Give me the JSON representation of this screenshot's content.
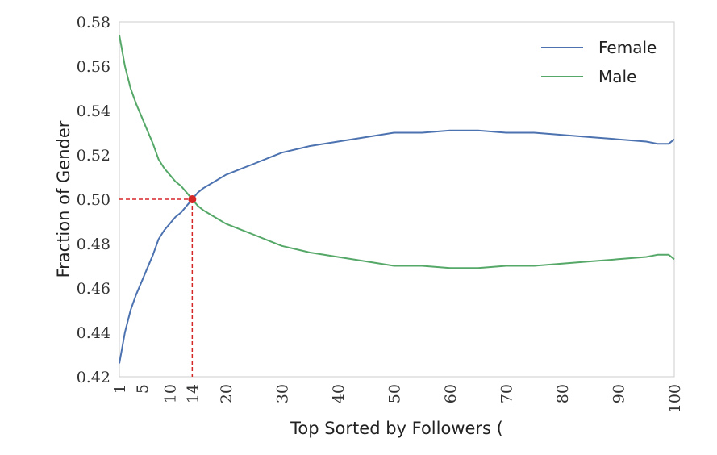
{
  "chart_data": {
    "type": "line",
    "xlabel": "Top Sorted by Followers (",
    "ylabel": "Fraction of Gender",
    "xlim": [
      1,
      100
    ],
    "ylim": [
      0.42,
      0.58
    ],
    "xticks": [
      1,
      5,
      10,
      14,
      20,
      30,
      40,
      50,
      60,
      70,
      80,
      90,
      100
    ],
    "xtick_labels": [
      "1",
      "5",
      "10",
      "14",
      "20",
      "30",
      "40",
      "50",
      "60",
      "70",
      "80",
      "90",
      "100"
    ],
    "yticks": [
      0.42,
      0.44,
      0.46,
      0.48,
      0.5,
      0.52,
      0.54,
      0.56,
      0.58
    ],
    "ytick_labels": [
      "0.42",
      "0.44",
      "0.46",
      "0.48",
      "0.50",
      "0.52",
      "0.54",
      "0.56",
      "0.58"
    ],
    "grid": false,
    "legend_position": "top-right",
    "series": [
      {
        "name": "Female",
        "color": "#4c72b0",
        "x": [
          1,
          2,
          3,
          4,
          5,
          6,
          7,
          8,
          9,
          10,
          11,
          12,
          13,
          14,
          15,
          16,
          18,
          20,
          22,
          25,
          28,
          30,
          35,
          40,
          45,
          50,
          55,
          60,
          65,
          70,
          75,
          80,
          85,
          90,
          95,
          97,
          99,
          100
        ],
        "y": [
          0.426,
          0.44,
          0.45,
          0.457,
          0.463,
          0.469,
          0.475,
          0.482,
          0.486,
          0.489,
          0.492,
          0.494,
          0.497,
          0.5,
          0.503,
          0.505,
          0.508,
          0.511,
          0.513,
          0.516,
          0.519,
          0.521,
          0.524,
          0.526,
          0.528,
          0.53,
          0.53,
          0.531,
          0.531,
          0.53,
          0.53,
          0.529,
          0.528,
          0.527,
          0.526,
          0.525,
          0.525,
          0.527
        ]
      },
      {
        "name": "Male",
        "color": "#55a868",
        "x": [
          1,
          2,
          3,
          4,
          5,
          6,
          7,
          8,
          9,
          10,
          11,
          12,
          13,
          14,
          15,
          16,
          18,
          20,
          22,
          25,
          28,
          30,
          35,
          40,
          45,
          50,
          55,
          60,
          65,
          70,
          75,
          80,
          85,
          90,
          95,
          97,
          99,
          100
        ],
        "y": [
          0.574,
          0.56,
          0.55,
          0.543,
          0.537,
          0.531,
          0.525,
          0.518,
          0.514,
          0.511,
          0.508,
          0.506,
          0.503,
          0.5,
          0.497,
          0.495,
          0.492,
          0.489,
          0.487,
          0.484,
          0.481,
          0.479,
          0.476,
          0.474,
          0.472,
          0.47,
          0.47,
          0.469,
          0.469,
          0.47,
          0.47,
          0.471,
          0.472,
          0.473,
          0.474,
          0.475,
          0.475,
          0.473
        ]
      }
    ],
    "annotation": {
      "x": 14,
      "y": 0.5,
      "color": "#d62728"
    }
  }
}
